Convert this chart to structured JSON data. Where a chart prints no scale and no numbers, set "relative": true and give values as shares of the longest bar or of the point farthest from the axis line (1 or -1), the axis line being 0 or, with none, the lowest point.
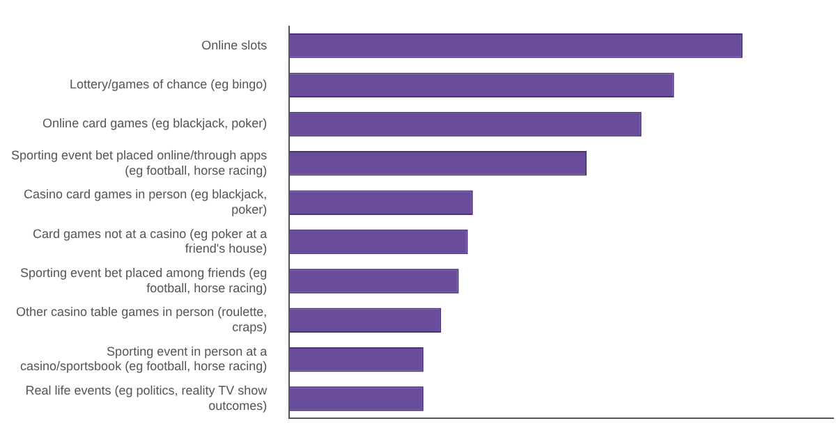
{
  "chart_data": {
    "type": "bar",
    "orientation": "horizontal",
    "relative": true,
    "grid": false,
    "legend": false,
    "categories": [
      "Online slots",
      "Lottery/games of chance (eg bingo)",
      "Online card games (eg blackjack, poker)",
      "Sporting event bet placed online/through apps (eg football, horse racing)",
      "Casino card games in person (eg blackjack, poker)",
      "Card games not at a casino (eg poker at a friend's house)",
      "Sporting event bet placed among friends (eg football, horse racing)",
      "Other casino table games in person (roulette, craps)",
      "Sporting event in person at a casino/sportsbook (eg football, horse racing)",
      "Real life events (eg politics, reality TV show outcomes)"
    ],
    "values": [
      1,
      0.849,
      0.777,
      0.656,
      0.405,
      0.394,
      0.374,
      0.335,
      0.296,
      0.296
    ],
    "color": "#6a4c9c"
  }
}
